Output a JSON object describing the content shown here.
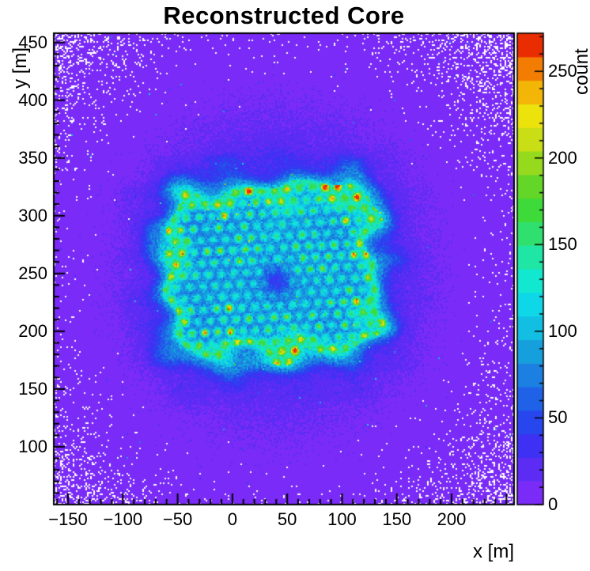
{
  "chart_data": {
    "type": "heatmap",
    "title": "Reconstructed Core",
    "xlabel": "x [m]",
    "ylabel": "y [m]",
    "zlabel": "count",
    "x_range": [
      -163,
      257
    ],
    "y_range": [
      50,
      458
    ],
    "z_range": [
      0,
      272
    ],
    "x_ticks": [
      -150,
      -100,
      -50,
      0,
      50,
      100,
      150,
      200
    ],
    "y_ticks": [
      100,
      150,
      200,
      250,
      300,
      350,
      400,
      450
    ],
    "z_ticks": [
      0,
      50,
      100,
      150,
      200,
      250
    ],
    "minor_tick_step": 10,
    "n_color_levels": 20,
    "zero_bin_color": "#ffffff",
    "palette": [
      "#7a2bf7",
      "#5c2cf5",
      "#3e31f3",
      "#2746ee",
      "#1f62e8",
      "#1b80e2",
      "#169fdd",
      "#12bfe2",
      "#0ed8e8",
      "#12e8d0",
      "#1fe6a4",
      "#2fe06e",
      "#3eda3a",
      "#63d628",
      "#96da1e",
      "#c9de15",
      "#ece20c",
      "#f3b607",
      "#f37d03",
      "#ea2d01"
    ],
    "model": {
      "description": "2D histogram of reconstructed shower-core positions. Uniform low background (violet, 1-30 counts) falling off radially, empty white bins far from centre; central detector-array footprint (x about -64..136 m, y about 174..330 m) with a blue plateau near 80 counts, a bright cyan rim near 110 counts, a hexagonal lattice of detector hotspots (about 11.6 m pitch) reaching 130-250 counts, and a small low-count dip near the array centre.",
      "background_peak": 32,
      "background_center": [
        40,
        252
      ],
      "background_sigma_m": 140,
      "plateau_counts": 50,
      "rim_counts": 68,
      "halo_counts": 13,
      "blob_center": [
        36,
        252
      ],
      "blob_half_size": [
        100,
        78
      ],
      "corner_radius": 35,
      "rotation_deg": -3,
      "lattice_spacing_m": [
        11.6,
        10.0
      ],
      "dot_sigma_m": 2.4,
      "dot_amp_range": [
        55,
        130
      ],
      "dot_amp_cap": 178,
      "center_dip": {
        "pos": [
          40,
          243
        ],
        "amp": -45,
        "sigma": 9
      }
    }
  }
}
